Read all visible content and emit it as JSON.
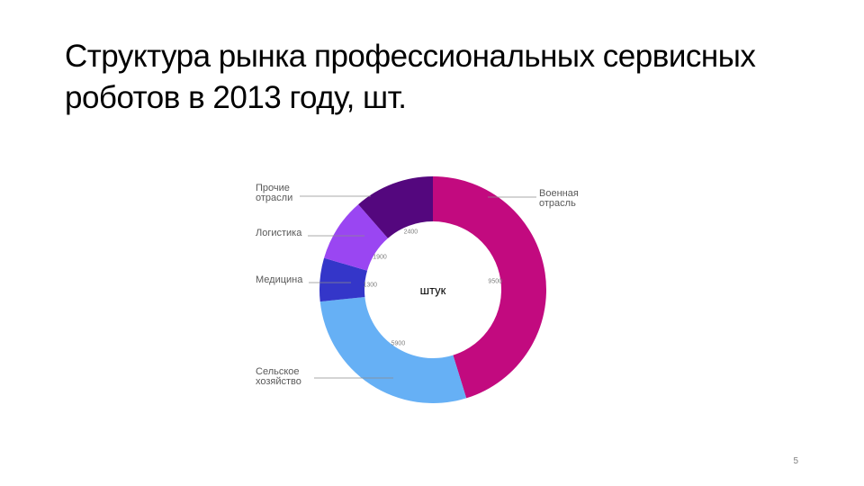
{
  "slide": {
    "title_line1": "Структура рынка профессиональных сервисных",
    "title_line2": "роботов в 2013 году, шт.",
    "page_number": "5"
  },
  "chart_data": {
    "type": "pie",
    "donut": true,
    "center_label": "штук",
    "slices": [
      {
        "label": "Военная отрасль",
        "value": 9500,
        "value_label": "9500",
        "color": "#c20a7f"
      },
      {
        "label": "Сельское хозяйство",
        "value": 5900,
        "value_label": "5900",
        "color": "#66b0f5"
      },
      {
        "label": "Медицина",
        "value": 1300,
        "value_label": "1300",
        "color": "#3436c9"
      },
      {
        "label": "Логистика",
        "value": 1900,
        "value_label": "1900",
        "color": "#9a46f2"
      },
      {
        "label": "Прочие отрасли",
        "value": 2400,
        "value_label": "2400",
        "color": "#54077e"
      }
    ],
    "label_color": "#595959",
    "leader_color": "#8c8c8c"
  }
}
